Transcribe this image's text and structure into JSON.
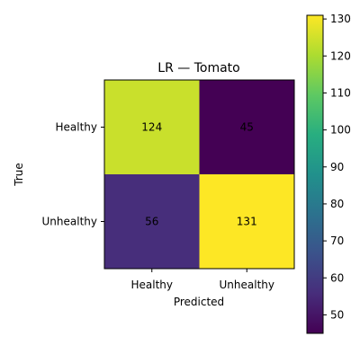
{
  "chart_data": {
    "type": "heatmap",
    "title": "LR — Tomato",
    "xlabel": "Predicted",
    "ylabel": "True",
    "x_categories": [
      "Healthy",
      "Unhealthy"
    ],
    "y_categories": [
      "Healthy",
      "Unhealthy"
    ],
    "values": [
      [
        124,
        45
      ],
      [
        56,
        131
      ]
    ],
    "colormap": "viridis",
    "colorbar": {
      "range": [
        45,
        131
      ],
      "ticks": [
        50,
        60,
        70,
        80,
        90,
        100,
        110,
        120,
        130
      ]
    }
  }
}
